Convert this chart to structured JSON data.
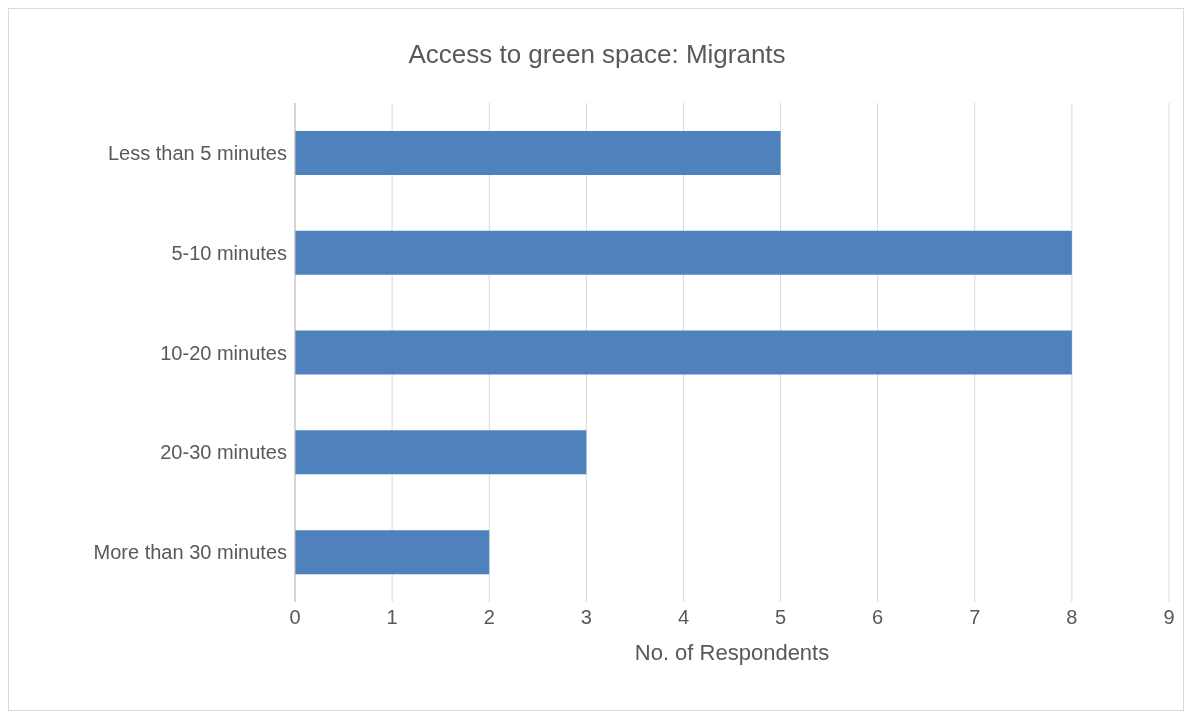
{
  "chart_data": {
    "type": "bar",
    "orientation": "horizontal",
    "title": "Access to green space: Migrants",
    "xlabel": "No. of Respondents",
    "categories": [
      "Less than 5 minutes",
      "5-10 minutes",
      "10-20 minutes",
      "20-30 minutes",
      "More than 30 minutes"
    ],
    "values": [
      5,
      8,
      8,
      3,
      2
    ],
    "color": "#4f81bd",
    "xlim": [
      0,
      9
    ],
    "xticks": [
      0,
      1,
      2,
      3,
      4,
      5,
      6,
      7,
      8,
      9
    ],
    "grid": "x"
  }
}
